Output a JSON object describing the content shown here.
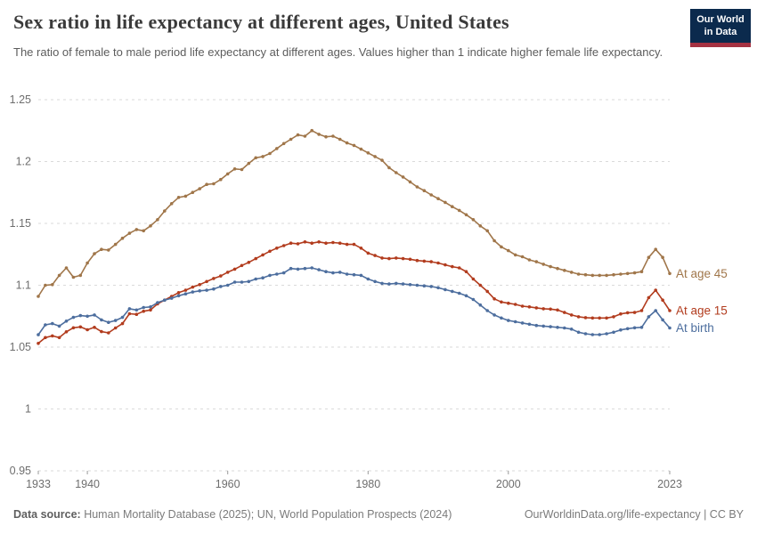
{
  "header": {
    "title": "Sex ratio in life expectancy at different ages, United States",
    "subtitle": "The ratio of female to male period life expectancy at different ages. Values higher than 1 indicate higher female life expectancy.",
    "logo": {
      "line1": "Our World",
      "line2": "in Data",
      "bg": "#0b2a4d",
      "accent": "#a53242"
    }
  },
  "footer": {
    "source_label": "Data source:",
    "source_text": " Human Mortality Database (2025); UN, World Population Prospects (2024)",
    "link_text": "OurWorldinData.org/life-expectancy",
    "license_text": " | CC BY"
  },
  "chart_data": {
    "type": "line",
    "title": "Sex ratio in life expectancy at different ages, United States",
    "xlabel": "",
    "ylabel": "",
    "ylim": [
      0.95,
      1.25
    ],
    "yticks": [
      0.95,
      1,
      1.05,
      1.1,
      1.15,
      1.2,
      1.25
    ],
    "xticks": [
      1933,
      1940,
      1960,
      1980,
      2000,
      2023
    ],
    "grid": "horizontal-dashed",
    "legend_position": "right-of-line-ends",
    "marker": "dot",
    "x": [
      1933,
      1934,
      1935,
      1936,
      1937,
      1938,
      1939,
      1940,
      1941,
      1942,
      1943,
      1944,
      1945,
      1946,
      1947,
      1948,
      1949,
      1950,
      1951,
      1952,
      1953,
      1954,
      1955,
      1956,
      1957,
      1958,
      1959,
      1960,
      1961,
      1962,
      1963,
      1964,
      1965,
      1966,
      1967,
      1968,
      1969,
      1970,
      1971,
      1972,
      1973,
      1974,
      1975,
      1976,
      1977,
      1978,
      1979,
      1980,
      1981,
      1982,
      1983,
      1984,
      1985,
      1986,
      1987,
      1988,
      1989,
      1990,
      1991,
      1992,
      1993,
      1994,
      1995,
      1996,
      1997,
      1998,
      1999,
      2000,
      2001,
      2002,
      2003,
      2004,
      2005,
      2006,
      2007,
      2008,
      2009,
      2010,
      2011,
      2012,
      2013,
      2014,
      2015,
      2016,
      2017,
      2018,
      2019,
      2020,
      2021,
      2022,
      2023
    ],
    "series": [
      {
        "name": "At age 45",
        "color": "#a0764a",
        "values": [
          1.091,
          1.1,
          1.1005,
          1.108,
          1.114,
          1.1065,
          1.108,
          1.118,
          1.1255,
          1.129,
          1.1285,
          1.133,
          1.138,
          1.142,
          1.145,
          1.144,
          1.148,
          1.153,
          1.16,
          1.166,
          1.171,
          1.172,
          1.175,
          1.178,
          1.1815,
          1.182,
          1.1855,
          1.19,
          1.194,
          1.1935,
          1.1985,
          1.203,
          1.204,
          1.2065,
          1.2105,
          1.2145,
          1.218,
          1.2215,
          1.2205,
          1.225,
          1.222,
          1.22,
          1.2205,
          1.218,
          1.215,
          1.213,
          1.21,
          1.207,
          1.204,
          1.201,
          1.195,
          1.191,
          1.1875,
          1.1835,
          1.1795,
          1.1765,
          1.173,
          1.17,
          1.167,
          1.1635,
          1.1605,
          1.157,
          1.153,
          1.148,
          1.144,
          1.136,
          1.131,
          1.128,
          1.1245,
          1.123,
          1.1205,
          1.119,
          1.117,
          1.115,
          1.1135,
          1.112,
          1.1105,
          1.109,
          1.1085,
          1.108,
          1.108,
          1.108,
          1.1085,
          1.109,
          1.1095,
          1.11,
          1.111,
          1.1225,
          1.129,
          1.1225,
          1.1095
        ]
      },
      {
        "name": "At age 15",
        "color": "#b23c1e",
        "values": [
          1.053,
          1.0577,
          1.0591,
          1.0577,
          1.0624,
          1.0656,
          1.0663,
          1.064,
          1.066,
          1.0625,
          1.0615,
          1.0655,
          1.069,
          1.077,
          1.0765,
          1.079,
          1.08,
          1.085,
          1.088,
          1.091,
          1.094,
          1.096,
          1.0985,
          1.1005,
          1.103,
          1.1055,
          1.1075,
          1.1105,
          1.113,
          1.116,
          1.1185,
          1.1215,
          1.1245,
          1.1275,
          1.13,
          1.132,
          1.134,
          1.1335,
          1.135,
          1.134,
          1.135,
          1.134,
          1.1345,
          1.134,
          1.133,
          1.133,
          1.13,
          1.126,
          1.124,
          1.122,
          1.1215,
          1.122,
          1.1215,
          1.121,
          1.12,
          1.1195,
          1.119,
          1.118,
          1.1165,
          1.115,
          1.114,
          1.111,
          1.105,
          1.1,
          1.095,
          1.089,
          1.0865,
          1.0855,
          1.0845,
          1.0831,
          1.0825,
          1.0817,
          1.081,
          1.0807,
          1.08,
          1.078,
          1.076,
          1.0745,
          1.0738,
          1.0735,
          1.0735,
          1.0735,
          1.0745,
          1.0768,
          1.0778,
          1.078,
          1.0795,
          1.09,
          1.096,
          1.088,
          1.0795
        ]
      },
      {
        "name": "At birth",
        "color": "#4d6e9e",
        "values": [
          1.06,
          1.068,
          1.069,
          1.067,
          1.071,
          1.074,
          1.0755,
          1.075,
          1.076,
          1.072,
          1.07,
          1.0715,
          1.074,
          1.081,
          1.08,
          1.082,
          1.0825,
          1.086,
          1.088,
          1.0895,
          1.0915,
          1.093,
          1.0945,
          1.0955,
          1.096,
          1.097,
          1.099,
          1.1,
          1.1025,
          1.1025,
          1.103,
          1.105,
          1.106,
          1.108,
          1.109,
          1.11,
          1.1135,
          1.113,
          1.1135,
          1.114,
          1.1125,
          1.111,
          1.11,
          1.1105,
          1.109,
          1.1085,
          1.108,
          1.105,
          1.103,
          1.1015,
          1.101,
          1.1015,
          1.101,
          1.1005,
          1.1,
          1.0995,
          1.099,
          1.098,
          1.0965,
          1.095,
          1.0935,
          1.0915,
          1.0885,
          1.084,
          1.0795,
          1.076,
          1.0735,
          1.0715,
          1.0705,
          1.0695,
          1.0685,
          1.0675,
          1.067,
          1.0665,
          1.066,
          1.0655,
          1.0645,
          1.062,
          1.0608,
          1.0601,
          1.0601,
          1.0608,
          1.062,
          1.0639,
          1.0649,
          1.0656,
          1.066,
          1.0745,
          1.0795,
          1.072,
          1.0655
        ]
      }
    ]
  }
}
